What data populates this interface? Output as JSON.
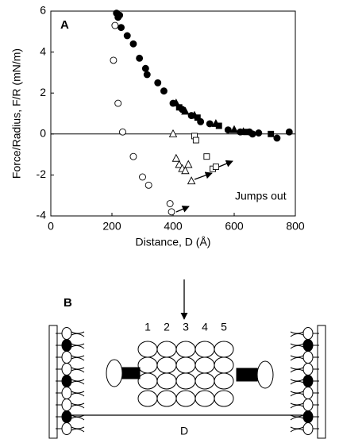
{
  "chart_data": {
    "type": "scatter",
    "panel_label": "A",
    "xlabel": "Distance, D (Å)",
    "ylabel": "Force/Radius, F/R (mN/m)",
    "annotation": "Jumps out",
    "xlim": [
      0,
      800
    ],
    "xticks": [
      0,
      200,
      400,
      600,
      800
    ],
    "ylim": [
      -4,
      6
    ],
    "yticks": [
      -4,
      -2,
      0,
      2,
      4,
      6
    ],
    "series": [
      {
        "marker": "circle",
        "filled": true,
        "color": "#000000",
        "x": [
          215,
          220,
          225,
          230,
          250,
          270,
          290,
          310,
          315,
          350,
          370,
          400,
          430,
          460,
          490,
          520,
          580,
          620,
          650,
          660,
          680,
          740,
          780
        ],
        "values": [
          5.9,
          5.7,
          5.8,
          5.2,
          4.8,
          4.4,
          3.7,
          3.2,
          2.9,
          2.5,
          2.1,
          1.5,
          1.2,
          0.9,
          0.6,
          0.5,
          0.2,
          0.1,
          0.1,
          0,
          0.05,
          -0.2,
          0.1
        ]
      },
      {
        "marker": "triangle",
        "filled": true,
        "color": "#000000",
        "x": [
          410,
          440,
          470,
          540,
          600,
          630
        ],
        "values": [
          1.5,
          1.1,
          0.9,
          0.5,
          0.2,
          0.1
        ]
      },
      {
        "marker": "square",
        "filled": true,
        "color": "#000000",
        "x": [
          420,
          480,
          550,
          640,
          720
        ],
        "values": [
          1.3,
          0.8,
          0.4,
          0.1,
          0
        ]
      },
      {
        "marker": "circle",
        "filled": false,
        "color": "#000000",
        "x": [
          210,
          205,
          220,
          235,
          270,
          300,
          320,
          390,
          395
        ],
        "values": [
          5.3,
          3.6,
          1.5,
          0.1,
          -1.1,
          -2.1,
          -2.5,
          -3.4,
          -3.8
        ]
      },
      {
        "marker": "triangle",
        "filled": false,
        "color": "#000000",
        "x": [
          400,
          410,
          420,
          430,
          440,
          450,
          460
        ],
        "values": [
          0,
          -1.2,
          -1.5,
          -1.7,
          -1.8,
          -1.5,
          -2.3
        ]
      },
      {
        "marker": "square",
        "filled": false,
        "color": "#000000",
        "x": [
          470,
          475,
          510,
          530,
          540
        ],
        "values": [
          -0.1,
          -0.3,
          -1.1,
          -1.7,
          -1.6
        ]
      }
    ]
  },
  "diagram": {
    "panel_label": "B",
    "columns": [
      "1",
      "2",
      "3",
      "4",
      "5"
    ],
    "distance_label": "D"
  }
}
